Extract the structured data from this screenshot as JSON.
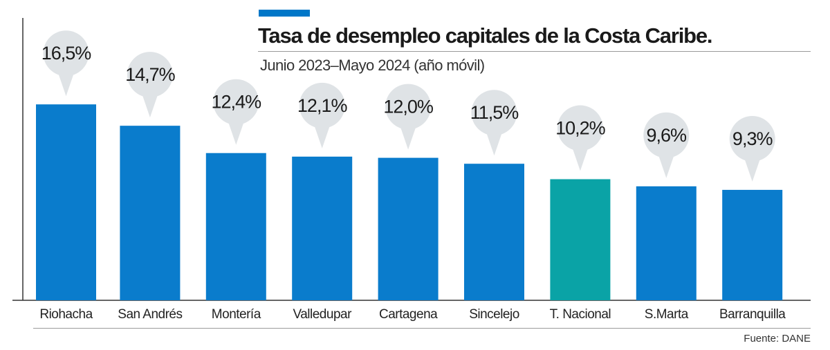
{
  "header": {
    "title": "Tasa de desempleo capitales de la Costa Caribe.",
    "subtitle": "Junio 2023–Mayo 2024 (año móvil)"
  },
  "footer": {
    "source": "Fuente: DANE"
  },
  "colors": {
    "accent": "#0077c8",
    "bar": "#0a7ccc",
    "highlight": "#0aa3a6",
    "bubble": "#dfe3e6",
    "axis": "#333333"
  },
  "chart_data": {
    "type": "bar",
    "categories": [
      "Riohacha",
      "San Andrés",
      "Montería",
      "Valledupar",
      "Cartagena",
      "Sincelejo",
      "T. Nacional",
      "S.Marta",
      "Barranquilla"
    ],
    "values": [
      16.5,
      14.7,
      12.4,
      12.1,
      12.0,
      11.5,
      10.2,
      9.6,
      9.3
    ],
    "value_labels": [
      "16,5%",
      "14,7%",
      "12,4%",
      "12,1%",
      "12,0%",
      "11,5%",
      "10,2%",
      "9,6%",
      "9,3%"
    ],
    "highlight_category": "T. Nacional",
    "xlabel": "",
    "ylabel": "",
    "grid": false,
    "legend": "none"
  }
}
